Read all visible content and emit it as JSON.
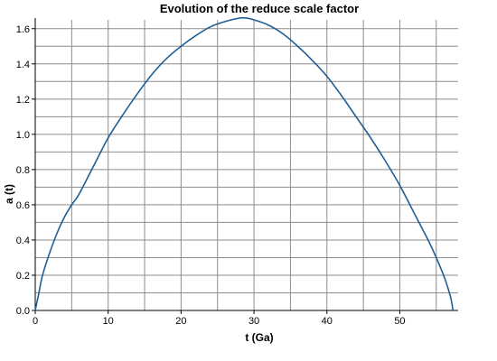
{
  "chart_data": {
    "type": "line",
    "title": "Evolution of the reduce scale factor",
    "xlabel": "t (Ga)",
    "ylabel": "a (t)",
    "xlim": [
      0,
      58
    ],
    "ylim": [
      0,
      1.65
    ],
    "x_ticks": [
      0,
      10,
      20,
      30,
      40,
      50
    ],
    "y_ticks": [
      0.0,
      0.2,
      0.4,
      0.6,
      0.8,
      1.0,
      1.2,
      1.4,
      1.6
    ],
    "x_tick_labels": [
      "0",
      "10",
      "20",
      "30",
      "40",
      "50"
    ],
    "y_tick_labels": [
      "0.0",
      "0.2",
      "0.4",
      "0.6",
      "0.8",
      "1.0",
      "1.2",
      "1.4",
      "1.6"
    ],
    "grid": true,
    "series": [
      {
        "color": "#1f5f96",
        "x": [
          0,
          0.5,
          1,
          2,
          3,
          4,
          5,
          6,
          8,
          10,
          12,
          14,
          16,
          18,
          20,
          22,
          24,
          26,
          28,
          29,
          30,
          32,
          34,
          36,
          38,
          40,
          42,
          44,
          46,
          48,
          50,
          52,
          53,
          54,
          55,
          56,
          56.5,
          57,
          57.3
        ],
        "y": [
          0.0,
          0.1,
          0.2,
          0.33,
          0.44,
          0.53,
          0.6,
          0.66,
          0.82,
          0.98,
          1.11,
          1.23,
          1.34,
          1.43,
          1.5,
          1.56,
          1.61,
          1.64,
          1.66,
          1.66,
          1.65,
          1.62,
          1.57,
          1.5,
          1.42,
          1.33,
          1.22,
          1.1,
          0.98,
          0.85,
          0.71,
          0.55,
          0.47,
          0.39,
          0.3,
          0.2,
          0.14,
          0.07,
          0.0
        ]
      }
    ]
  }
}
